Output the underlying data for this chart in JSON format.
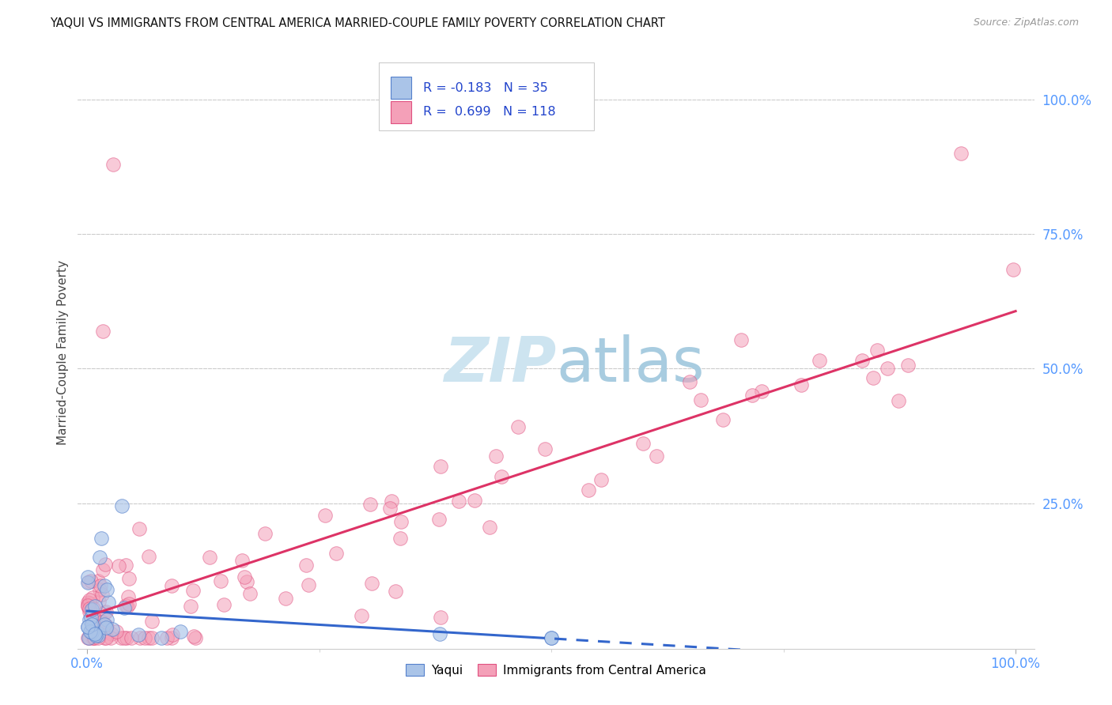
{
  "title": "YAQUI VS IMMIGRANTS FROM CENTRAL AMERICA MARRIED-COUPLE FAMILY POVERTY CORRELATION CHART",
  "source": "Source: ZipAtlas.com",
  "ylabel": "Married-Couple Family Poverty",
  "legend_label1": "Yaqui",
  "legend_label2": "Immigrants from Central America",
  "r1": -0.183,
  "n1": 35,
  "r2": 0.699,
  "n2": 118,
  "color_yaqui_fill": "#aac4e8",
  "color_yaqui_edge": "#5580cc",
  "color_immig_fill": "#f4a0b8",
  "color_immig_edge": "#e05080",
  "color_line_yaqui": "#3366cc",
  "color_line_immig": "#dd3366",
  "watermark_color": "#cde4f0",
  "background_color": "#ffffff",
  "grid_color": "#cccccc",
  "right_tick_color": "#5599ff",
  "title_color": "#111111",
  "source_color": "#999999",
  "ylabel_color": "#444444",
  "yaqui_seed": 77,
  "immig_seed": 99
}
